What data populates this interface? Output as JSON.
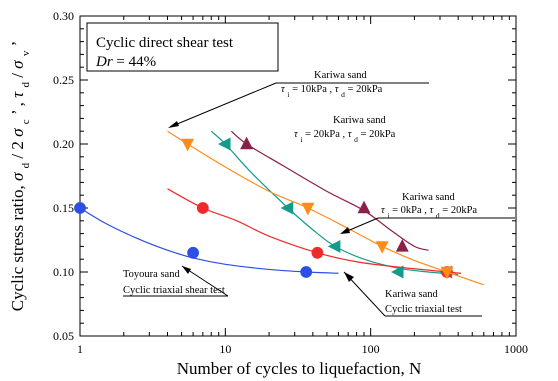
{
  "chart_data": {
    "type": "scatter",
    "title": "Cyclic direct shear test",
    "subtitle_parts": [
      "Dr",
      " = 44%"
    ],
    "xlabel": "Number of cycles to liquefaction, N",
    "ylabel_parts": [
      "Cyclic stress ratio, ",
      "σ",
      "d",
      " / 2",
      "σ",
      "c",
      "’ , ",
      "τ",
      "d",
      " / ",
      "σ",
      "v",
      "’"
    ],
    "xscale": "log",
    "xlim": [
      1,
      1000
    ],
    "ylim": [
      0.05,
      0.3
    ],
    "x_ticks": [
      1,
      10,
      100,
      1000
    ],
    "x_tick_labels": [
      "1",
      "10",
      "100",
      "1000"
    ],
    "y_ticks": [
      0.05,
      0.1,
      0.15,
      0.2,
      0.25,
      0.3
    ],
    "y_tick_labels": [
      "0.05",
      "0.10",
      "0.15",
      "0.20",
      "0.25",
      "0.30"
    ],
    "grid": false,
    "legend": "none",
    "series": [
      {
        "id": "toyoura-triaxial",
        "marker": "circle",
        "color": "#2d4fe3",
        "points": [
          [
            1,
            0.15
          ],
          [
            6,
            0.115
          ],
          [
            36,
            0.1
          ]
        ],
        "curve": [
          [
            1,
            0.15
          ],
          [
            1.5,
            0.138
          ],
          [
            2.5,
            0.126
          ],
          [
            4,
            0.117
          ],
          [
            6,
            0.111
          ],
          [
            10,
            0.106
          ],
          [
            20,
            0.102
          ],
          [
            36,
            0.1
          ],
          [
            60,
            0.099
          ]
        ]
      },
      {
        "id": "kariwa-triaxial",
        "marker": "triangle-left",
        "color": "#159b8a",
        "points": [
          [
            10,
            0.2
          ],
          [
            27,
            0.15
          ],
          [
            57,
            0.12
          ],
          [
            155,
            0.1
          ],
          [
            335,
            0.1
          ]
        ],
        "curve": [
          [
            8,
            0.21
          ],
          [
            10,
            0.2
          ],
          [
            15,
            0.178
          ],
          [
            27,
            0.15
          ],
          [
            40,
            0.133
          ],
          [
            57,
            0.12
          ],
          [
            90,
            0.11
          ],
          [
            155,
            0.103
          ],
          [
            250,
            0.1
          ],
          [
            400,
            0.098
          ]
        ]
      },
      {
        "id": "kariwa-0-20",
        "marker": "circle",
        "color": "#ee2a2a",
        "points": [
          [
            7,
            0.15
          ],
          [
            43,
            0.115
          ],
          [
            335,
            0.1
          ]
        ],
        "curve": [
          [
            4,
            0.165
          ],
          [
            7,
            0.15
          ],
          [
            12,
            0.14
          ],
          [
            20,
            0.128
          ],
          [
            43,
            0.115
          ],
          [
            80,
            0.108
          ],
          [
            150,
            0.104
          ],
          [
            335,
            0.1
          ],
          [
            420,
            0.099
          ]
        ]
      },
      {
        "id": "kariwa-10-20",
        "marker": "triangle-down",
        "color": "#ff8c1a",
        "points": [
          [
            5.5,
            0.2
          ],
          [
            37,
            0.15
          ],
          [
            120,
            0.12
          ],
          [
            335,
            0.1
          ]
        ],
        "curve": [
          [
            4,
            0.21
          ],
          [
            5.5,
            0.2
          ],
          [
            10,
            0.182
          ],
          [
            20,
            0.163
          ],
          [
            37,
            0.15
          ],
          [
            70,
            0.134
          ],
          [
            120,
            0.12
          ],
          [
            200,
            0.109
          ],
          [
            335,
            0.1
          ],
          [
            600,
            0.09
          ]
        ]
      },
      {
        "id": "kariwa-20-20",
        "marker": "triangle-up",
        "color": "#8c1f4a",
        "points": [
          [
            14,
            0.2
          ],
          [
            90,
            0.15
          ],
          [
            165,
            0.12
          ]
        ],
        "curve": [
          [
            11,
            0.21
          ],
          [
            14,
            0.2
          ],
          [
            25,
            0.183
          ],
          [
            50,
            0.163
          ],
          [
            90,
            0.148
          ],
          [
            140,
            0.132
          ],
          [
            200,
            0.12
          ],
          [
            250,
            0.117
          ]
        ]
      }
    ],
    "annotations": {
      "toyoura": [
        "Toyoura sand",
        "Cyclic triaxial shear test"
      ],
      "kariwa_triaxial": [
        "Kariwa sand",
        "Cyclic triaxial test"
      ],
      "kariwa_0_20": {
        "line1": "Kariwa sand",
        "line2": [
          "τ",
          "i",
          " = 0kPa , ",
          "τ",
          "d",
          " = 20kPa"
        ]
      },
      "kariwa_10_20": {
        "line1": "Kariwa sand",
        "line2": [
          "τ",
          "i",
          " = 10kPa , ",
          "τ",
          "d",
          " = 20kPa"
        ]
      },
      "kariwa_20_20": {
        "line1": "Kariwa sand",
        "line2": [
          "τ",
          "i",
          " = 20kPa , ",
          "τ",
          "d",
          " = 20kPa"
        ]
      }
    },
    "colors": {
      "axis": "#000000",
      "leader": "#000000"
    }
  }
}
